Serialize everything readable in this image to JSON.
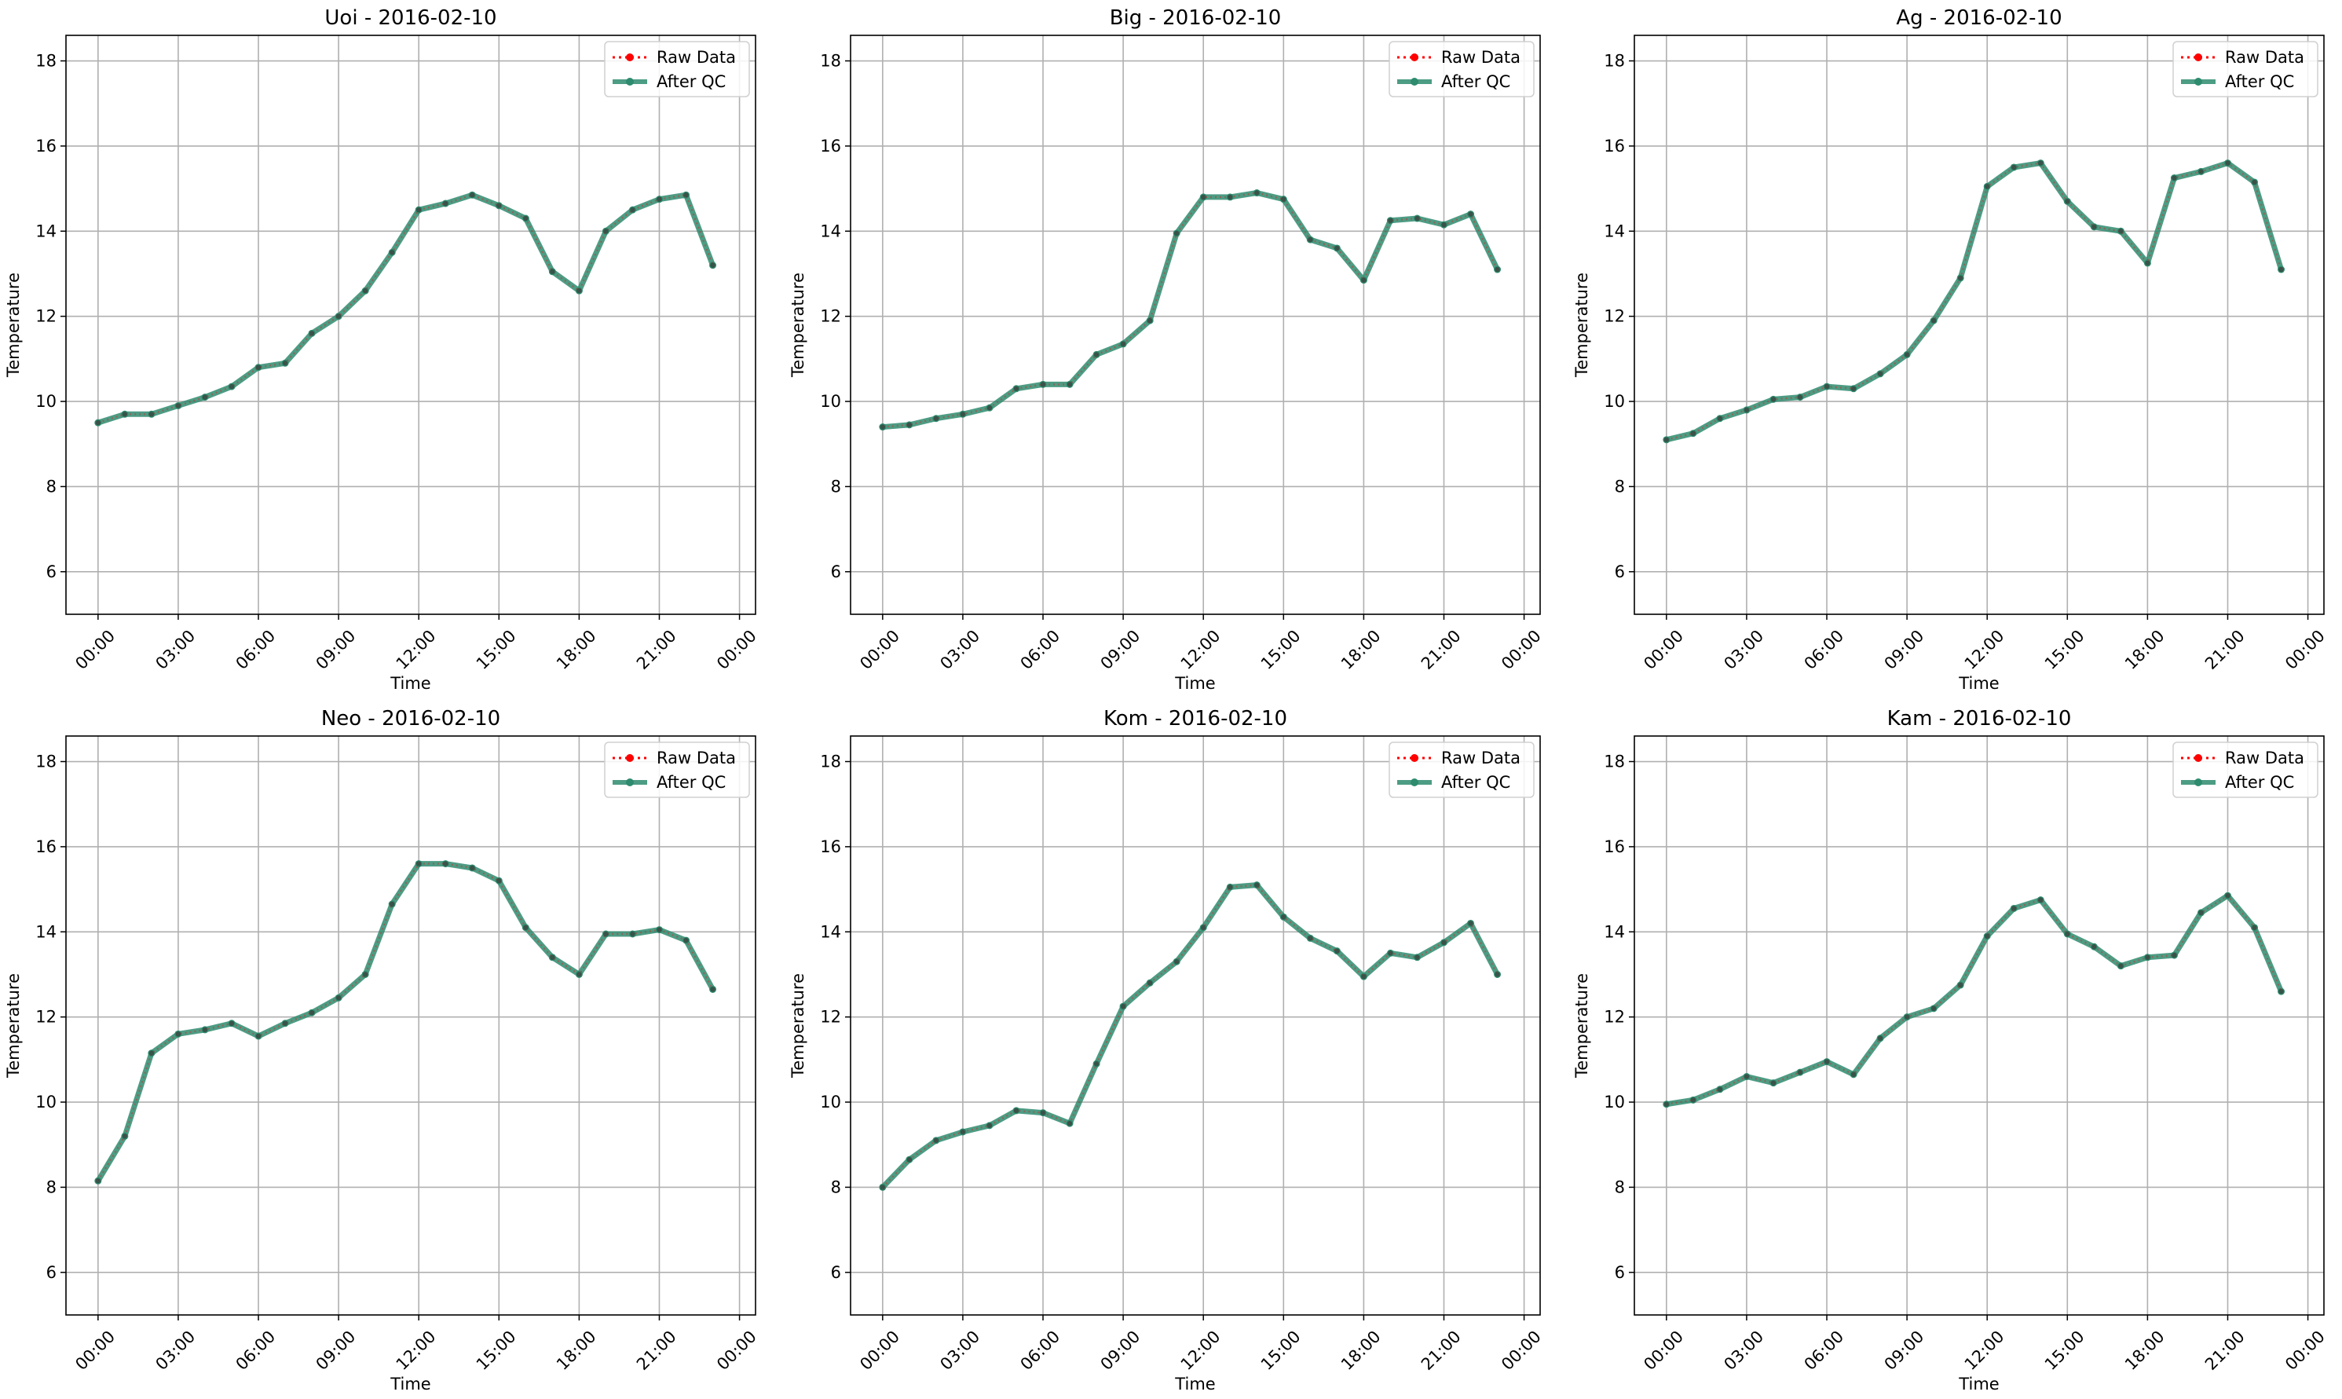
{
  "chart_data": [
    {
      "type": "line",
      "title": "Uoi - 2016-02-10",
      "xlabel": "Time",
      "ylabel": "Temperature",
      "ylim": [
        5,
        18.6
      ],
      "yticks": [
        6,
        8,
        10,
        12,
        14,
        16,
        18
      ],
      "xticks": [
        "00:00",
        "03:00",
        "06:00",
        "09:00",
        "12:00",
        "15:00",
        "18:00",
        "21:00",
        "00:00"
      ],
      "grid": true,
      "legend_position": "upper-right",
      "x": [
        "00:00",
        "01:00",
        "02:00",
        "03:00",
        "04:00",
        "05:00",
        "06:00",
        "07:00",
        "08:00",
        "09:00",
        "10:00",
        "11:00",
        "12:00",
        "13:00",
        "14:00",
        "15:00",
        "16:00",
        "17:00",
        "18:00",
        "19:00",
        "20:00",
        "21:00",
        "22:00",
        "23:00"
      ],
      "series": [
        {
          "name": "Raw Data",
          "color": "#ff0000",
          "values": [
            9.5,
            9.7,
            9.7,
            9.9,
            10.1,
            10.35,
            10.8,
            10.9,
            11.6,
            12.0,
            12.6,
            13.5,
            14.5,
            14.65,
            14.85,
            14.6,
            14.3,
            13.05,
            12.6,
            14.0,
            14.5,
            14.75,
            14.85,
            13.2
          ]
        },
        {
          "name": "After QC",
          "color": "#2e8b6e",
          "values": [
            9.5,
            9.7,
            9.7,
            9.9,
            10.1,
            10.35,
            10.8,
            10.9,
            11.6,
            12.0,
            12.6,
            13.5,
            14.5,
            14.65,
            14.85,
            14.6,
            14.3,
            13.05,
            12.6,
            14.0,
            14.5,
            14.75,
            14.85,
            13.2
          ]
        }
      ]
    },
    {
      "type": "line",
      "title": "Big - 2016-02-10",
      "xlabel": "Time",
      "ylabel": "Temperature",
      "ylim": [
        5,
        18.6
      ],
      "yticks": [
        6,
        8,
        10,
        12,
        14,
        16,
        18
      ],
      "xticks": [
        "00:00",
        "03:00",
        "06:00",
        "09:00",
        "12:00",
        "15:00",
        "18:00",
        "21:00",
        "00:00"
      ],
      "grid": true,
      "legend_position": "upper-right",
      "x": [
        "00:00",
        "01:00",
        "02:00",
        "03:00",
        "04:00",
        "05:00",
        "06:00",
        "07:00",
        "08:00",
        "09:00",
        "10:00",
        "11:00",
        "12:00",
        "13:00",
        "14:00",
        "15:00",
        "16:00",
        "17:00",
        "18:00",
        "19:00",
        "20:00",
        "21:00",
        "22:00",
        "23:00"
      ],
      "series": [
        {
          "name": "Raw Data",
          "color": "#ff0000",
          "values": [
            9.4,
            9.45,
            9.6,
            9.7,
            9.85,
            10.3,
            10.4,
            10.4,
            11.1,
            11.35,
            11.9,
            13.95,
            14.8,
            14.8,
            14.9,
            14.75,
            13.8,
            13.6,
            12.85,
            14.25,
            14.3,
            14.15,
            14.4,
            13.1
          ]
        },
        {
          "name": "After QC",
          "color": "#2e8b6e",
          "values": [
            9.4,
            9.45,
            9.6,
            9.7,
            9.85,
            10.3,
            10.4,
            10.4,
            11.1,
            11.35,
            11.9,
            13.95,
            14.8,
            14.8,
            14.9,
            14.75,
            13.8,
            13.6,
            12.85,
            14.25,
            14.3,
            14.15,
            14.4,
            13.1
          ]
        }
      ]
    },
    {
      "type": "line",
      "title": "Ag - 2016-02-10",
      "xlabel": "Time",
      "ylabel": "Temperature",
      "ylim": [
        5,
        18.6
      ],
      "yticks": [
        6,
        8,
        10,
        12,
        14,
        16,
        18
      ],
      "xticks": [
        "00:00",
        "03:00",
        "06:00",
        "09:00",
        "12:00",
        "15:00",
        "18:00",
        "21:00",
        "00:00"
      ],
      "grid": true,
      "legend_position": "upper-right",
      "x": [
        "00:00",
        "01:00",
        "02:00",
        "03:00",
        "04:00",
        "05:00",
        "06:00",
        "07:00",
        "08:00",
        "09:00",
        "10:00",
        "11:00",
        "12:00",
        "13:00",
        "14:00",
        "15:00",
        "16:00",
        "17:00",
        "18:00",
        "19:00",
        "20:00",
        "21:00",
        "22:00",
        "23:00"
      ],
      "series": [
        {
          "name": "Raw Data",
          "color": "#ff0000",
          "values": [
            9.1,
            9.25,
            9.6,
            9.8,
            10.05,
            10.1,
            10.35,
            10.3,
            10.65,
            11.1,
            11.9,
            12.9,
            15.05,
            15.5,
            15.6,
            14.7,
            14.1,
            14.0,
            13.25,
            15.25,
            15.4,
            15.6,
            15.15,
            13.1
          ]
        },
        {
          "name": "After QC",
          "color": "#2e8b6e",
          "values": [
            9.1,
            9.25,
            9.6,
            9.8,
            10.05,
            10.1,
            10.35,
            10.3,
            10.65,
            11.1,
            11.9,
            12.9,
            15.05,
            15.5,
            15.6,
            14.7,
            14.1,
            14.0,
            13.25,
            15.25,
            15.4,
            15.6,
            15.15,
            13.1
          ]
        }
      ]
    },
    {
      "type": "line",
      "title": "Neo - 2016-02-10",
      "xlabel": "Time",
      "ylabel": "Temperature",
      "ylim": [
        5,
        18.6
      ],
      "yticks": [
        6,
        8,
        10,
        12,
        14,
        16,
        18
      ],
      "xticks": [
        "00:00",
        "03:00",
        "06:00",
        "09:00",
        "12:00",
        "15:00",
        "18:00",
        "21:00",
        "00:00"
      ],
      "grid": true,
      "legend_position": "upper-right",
      "x": [
        "00:00",
        "01:00",
        "02:00",
        "03:00",
        "04:00",
        "05:00",
        "06:00",
        "07:00",
        "08:00",
        "09:00",
        "10:00",
        "11:00",
        "12:00",
        "13:00",
        "14:00",
        "15:00",
        "16:00",
        "17:00",
        "18:00",
        "19:00",
        "20:00",
        "21:00",
        "22:00",
        "23:00"
      ],
      "series": [
        {
          "name": "Raw Data",
          "color": "#ff0000",
          "values": [
            8.15,
            9.2,
            11.15,
            11.6,
            11.7,
            11.85,
            11.55,
            11.85,
            12.1,
            12.45,
            13.0,
            14.65,
            15.6,
            15.6,
            15.5,
            15.2,
            14.1,
            13.4,
            13.0,
            13.95,
            13.95,
            14.05,
            13.8,
            12.65
          ]
        },
        {
          "name": "After QC",
          "color": "#2e8b6e",
          "values": [
            8.15,
            9.2,
            11.15,
            11.6,
            11.7,
            11.85,
            11.55,
            11.85,
            12.1,
            12.45,
            13.0,
            14.65,
            15.6,
            15.6,
            15.5,
            15.2,
            14.1,
            13.4,
            13.0,
            13.95,
            13.95,
            14.05,
            13.8,
            12.65
          ]
        }
      ]
    },
    {
      "type": "line",
      "title": "Kom - 2016-02-10",
      "xlabel": "Time",
      "ylabel": "Temperature",
      "ylim": [
        5,
        18.6
      ],
      "yticks": [
        6,
        8,
        10,
        12,
        14,
        16,
        18
      ],
      "xticks": [
        "00:00",
        "03:00",
        "06:00",
        "09:00",
        "12:00",
        "15:00",
        "18:00",
        "21:00",
        "00:00"
      ],
      "grid": true,
      "legend_position": "upper-right",
      "x": [
        "00:00",
        "01:00",
        "02:00",
        "03:00",
        "04:00",
        "05:00",
        "06:00",
        "07:00",
        "08:00",
        "09:00",
        "10:00",
        "11:00",
        "12:00",
        "13:00",
        "14:00",
        "15:00",
        "16:00",
        "17:00",
        "18:00",
        "19:00",
        "20:00",
        "21:00",
        "22:00",
        "23:00"
      ],
      "series": [
        {
          "name": "Raw Data",
          "color": "#ff0000",
          "values": [
            8.0,
            8.65,
            9.1,
            9.3,
            9.45,
            9.8,
            9.75,
            9.5,
            10.9,
            12.25,
            12.8,
            13.3,
            14.1,
            15.05,
            15.1,
            14.35,
            13.85,
            13.55,
            12.95,
            13.5,
            13.4,
            13.75,
            14.2,
            13.0
          ]
        },
        {
          "name": "After QC",
          "color": "#2e8b6e",
          "values": [
            8.0,
            8.65,
            9.1,
            9.3,
            9.45,
            9.8,
            9.75,
            9.5,
            10.9,
            12.25,
            12.8,
            13.3,
            14.1,
            15.05,
            15.1,
            14.35,
            13.85,
            13.55,
            12.95,
            13.5,
            13.4,
            13.75,
            14.2,
            13.0
          ]
        }
      ]
    },
    {
      "type": "line",
      "title": "Kam - 2016-02-10",
      "xlabel": "Time",
      "ylabel": "Temperature",
      "ylim": [
        5,
        18.6
      ],
      "yticks": [
        6,
        8,
        10,
        12,
        14,
        16,
        18
      ],
      "xticks": [
        "00:00",
        "03:00",
        "06:00",
        "09:00",
        "12:00",
        "15:00",
        "18:00",
        "21:00",
        "00:00"
      ],
      "grid": true,
      "legend_position": "upper-right",
      "x": [
        "00:00",
        "01:00",
        "02:00",
        "03:00",
        "04:00",
        "05:00",
        "06:00",
        "07:00",
        "08:00",
        "09:00",
        "10:00",
        "11:00",
        "12:00",
        "13:00",
        "14:00",
        "15:00",
        "16:00",
        "17:00",
        "18:00",
        "19:00",
        "20:00",
        "21:00",
        "22:00",
        "23:00"
      ],
      "series": [
        {
          "name": "Raw Data",
          "color": "#ff0000",
          "values": [
            9.95,
            10.05,
            10.3,
            10.6,
            10.45,
            10.7,
            10.95,
            10.65,
            11.5,
            12.0,
            12.2,
            12.75,
            13.9,
            14.55,
            14.75,
            13.95,
            13.65,
            13.2,
            13.4,
            13.45,
            14.45,
            14.85,
            14.1,
            12.6
          ]
        },
        {
          "name": "After QC",
          "color": "#2e8b6e",
          "values": [
            9.95,
            10.05,
            10.3,
            10.6,
            10.45,
            10.7,
            10.95,
            10.65,
            11.5,
            12.0,
            12.2,
            12.75,
            13.9,
            14.55,
            14.75,
            13.95,
            13.65,
            13.2,
            13.4,
            13.45,
            14.45,
            14.85,
            14.1,
            12.6
          ]
        }
      ]
    }
  ]
}
